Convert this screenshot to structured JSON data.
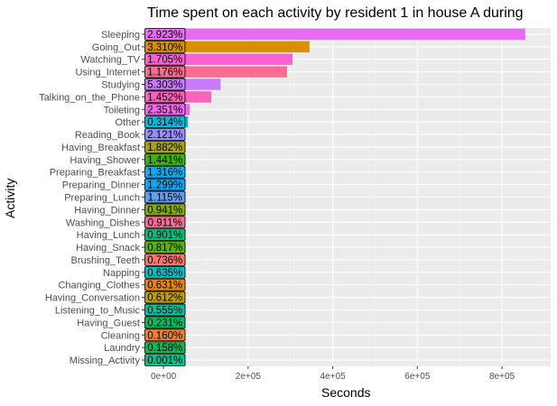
{
  "chart_data": {
    "type": "bar",
    "orientation": "horizontal",
    "title": "Time spent on each activity by resident 1 in house A during",
    "xlabel": "Seconds",
    "ylabel": "Activity",
    "xlim": [
      -45000,
      915000
    ],
    "x_ticks": [
      0,
      200000,
      400000,
      600000,
      800000
    ],
    "x_tick_labels": [
      "0e+00",
      "2e+05",
      "4e+05",
      "6e+05",
      "8e+05"
    ],
    "grid": true,
    "legend": "none",
    "categories": [
      "Sleeping",
      "Going_Out",
      "Watching_TV",
      "Using_Internet",
      "Studying",
      "Talking_on_the_Phone",
      "Toileting",
      "Other",
      "Reading_Book",
      "Having_Breakfast",
      "Having_Shower",
      "Preparing_Breakfast",
      "Preparing_Dinner",
      "Preparing_Lunch",
      "Having_Dinner",
      "Washing_Dishes",
      "Having_Lunch",
      "Having_Snack",
      "Brushing_Teeth",
      "Napping",
      "Changing_Clothes",
      "Having_Conversation",
      "Listening_to_Music",
      "Having_Guest",
      "Cleaning",
      "Laundry",
      "Missing_Activity"
    ],
    "values": [
      855000,
      345000,
      305000,
      292000,
      135000,
      113000,
      62000,
      58000,
      52000,
      52000,
      52000,
      52000,
      52000,
      52000,
      52000,
      52000,
      52000,
      52000,
      52000,
      52000,
      52000,
      52000,
      52000,
      52000,
      52000,
      52000,
      52000
    ],
    "percent_labels": [
      "2.923%",
      "3.310%",
      "1.705%",
      "1.176%",
      "5.303%",
      "1.452%",
      "2.351%",
      "0.314%",
      "2.121%",
      "1.882%",
      "1.441%",
      "1.316%",
      "1.299%",
      "1.115%",
      "0.941%",
      "0.911%",
      "0.901%",
      "0.817%",
      "0.736%",
      "0.635%",
      "0.631%",
      "0.612%",
      "0.555%",
      "0.231%",
      "0.160%",
      "0.158%",
      "0.001%"
    ],
    "colors": [
      "#e76bf3",
      "#d89000",
      "#fd61d1",
      "#ff6c91",
      "#c77cff",
      "#ff62bc",
      "#f066ea",
      "#00bae0",
      "#9590ff",
      "#a3a500",
      "#39b600",
      "#00b0f6",
      "#00a9ff",
      "#619cff",
      "#85ad00",
      "#ff6a98",
      "#00bf7d",
      "#5bb300",
      "#f8766d",
      "#00bfc4",
      "#e58700",
      "#bf9e00",
      "#00c19f",
      "#00bd5c",
      "#f0802b",
      "#00bc52",
      "#00c08b"
    ]
  }
}
